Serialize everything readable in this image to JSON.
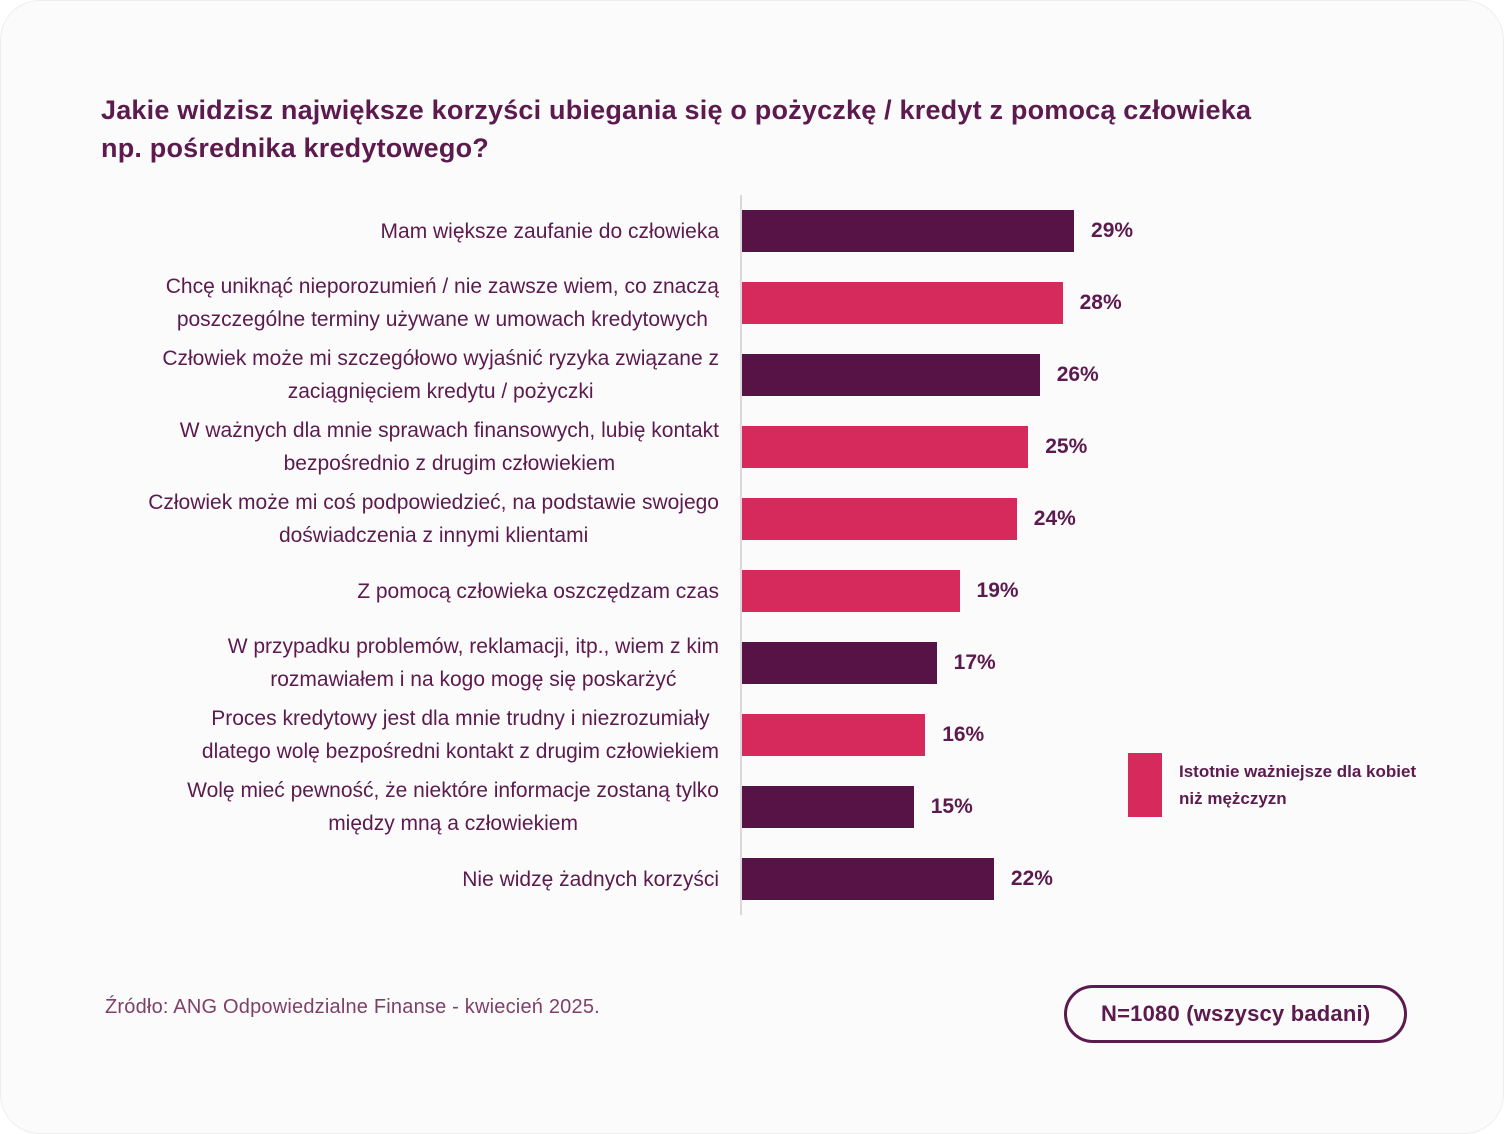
{
  "title": {
    "text": "Jakie widzisz największe korzyści ubiegania się o pożyczkę / kredyt z pomocą człowieka np. pośrednika kredytowego?",
    "line1": "Jakie widzisz największe korzyści ubiegania się o pożyczkę / kredyt z pomocą człowieka",
    "line2": "np. pośrednika kredytowego?"
  },
  "chart_data": {
    "type": "bar",
    "orientation": "horizontal",
    "unit": "%",
    "xlim": [
      0,
      30
    ],
    "grid": false,
    "legend_position": "right",
    "categories": [
      "Mam większe zaufanie do człowieka",
      "Chcę uniknąć nieporozumień / nie zawsze wiem, co znaczą poszczególne terminy używane w umowach kredytowych",
      "Człowiek może mi szczegółowo wyjaśnić ryzyka związane z zaciągnięciem kredytu / pożyczki",
      "W ważnych dla mnie sprawach finansowych, lubię kontakt bezpośrednio z drugim człowiekiem",
      "Człowiek może mi coś podpowiedzieć, na podstawie swojego doświadczenia z innymi klientami",
      "Z pomocą człowieka  oszczędzam czas",
      "W przypadku problemów, reklamacji, itp., wiem z kim rozmawiałem i na kogo mogę się poskarżyć",
      "Proces kredytowy jest dla mnie trudny i niezrozumiały dlatego wolę bezpośredni kontakt z drugim człowiekiem",
      "Wolę mieć pewność, że niektóre informacje zostaną tylko między mną a człowiekiem",
      "Nie widzę żadnych korzyści"
    ],
    "values": [
      29,
      28,
      26,
      25,
      24,
      19,
      17,
      16,
      15,
      22
    ],
    "colors": {
      "dark_purple": "#581346",
      "pink": "#d52a5b"
    },
    "rows": [
      {
        "label_lines": [
          "Mam większe zaufanie do człowieka"
        ],
        "value": 29,
        "value_label": "29%",
        "color": "dark_purple"
      },
      {
        "label_lines": [
          "Chcę uniknąć nieporozumień / nie zawsze wiem, co znaczą",
          "poszczególne terminy używane w umowach kredytowych"
        ],
        "value": 28,
        "value_label": "28%",
        "color": "pink"
      },
      {
        "label_lines": [
          "Człowiek może mi szczegółowo wyjaśnić ryzyka związane z",
          "zaciągnięciem kredytu / pożyczki"
        ],
        "value": 26,
        "value_label": "26%",
        "color": "dark_purple"
      },
      {
        "label_lines": [
          "W ważnych dla mnie sprawach finansowych, lubię kontakt",
          "bezpośrednio z drugim człowiekiem"
        ],
        "value": 25,
        "value_label": "25%",
        "color": "pink"
      },
      {
        "label_lines": [
          "Człowiek może mi coś podpowiedzieć, na podstawie swojego",
          "doświadczenia z innymi klientami"
        ],
        "value": 24,
        "value_label": "24%",
        "color": "pink"
      },
      {
        "label_lines": [
          "Z pomocą człowieka  oszczędzam czas"
        ],
        "value": 19,
        "value_label": "19%",
        "color": "pink"
      },
      {
        "label_lines": [
          "W przypadku problemów, reklamacji, itp., wiem z kim",
          "rozmawiałem i na kogo mogę się poskarżyć"
        ],
        "value": 17,
        "value_label": "17%",
        "color": "dark_purple"
      },
      {
        "label_lines": [
          "Proces kredytowy jest dla mnie trudny i niezrozumiały",
          "dlatego wolę bezpośredni kontakt z drugim człowiekiem"
        ],
        "value": 16,
        "value_label": "16%",
        "color": "pink"
      },
      {
        "label_lines": [
          "Wolę mieć pewność, że niektóre informacje zostaną tylko",
          "między mną a człowiekiem"
        ],
        "value": 15,
        "value_label": "15%",
        "color": "dark_purple"
      },
      {
        "label_lines": [
          "Nie widzę żadnych korzyści"
        ],
        "value": 22,
        "value_label": "22%",
        "color": "dark_purple"
      }
    ],
    "legend": {
      "lines": [
        "Istotnie ważniejsze dla kobiet",
        "niż mężczyzn"
      ],
      "swatch_color": "#d52a5b"
    }
  },
  "footer": {
    "source": "Źródło: ANG Odpowiedzialne Finanse - kwiecień 2025.",
    "badge": "N=1080 (wszyscy badani)"
  },
  "theme": {
    "text_color": "#5c1a4e",
    "source_color": "#7e4069",
    "axis_color": "#dbd8db",
    "card_background": "#fcfbfc",
    "page_background": "#ffffff"
  }
}
